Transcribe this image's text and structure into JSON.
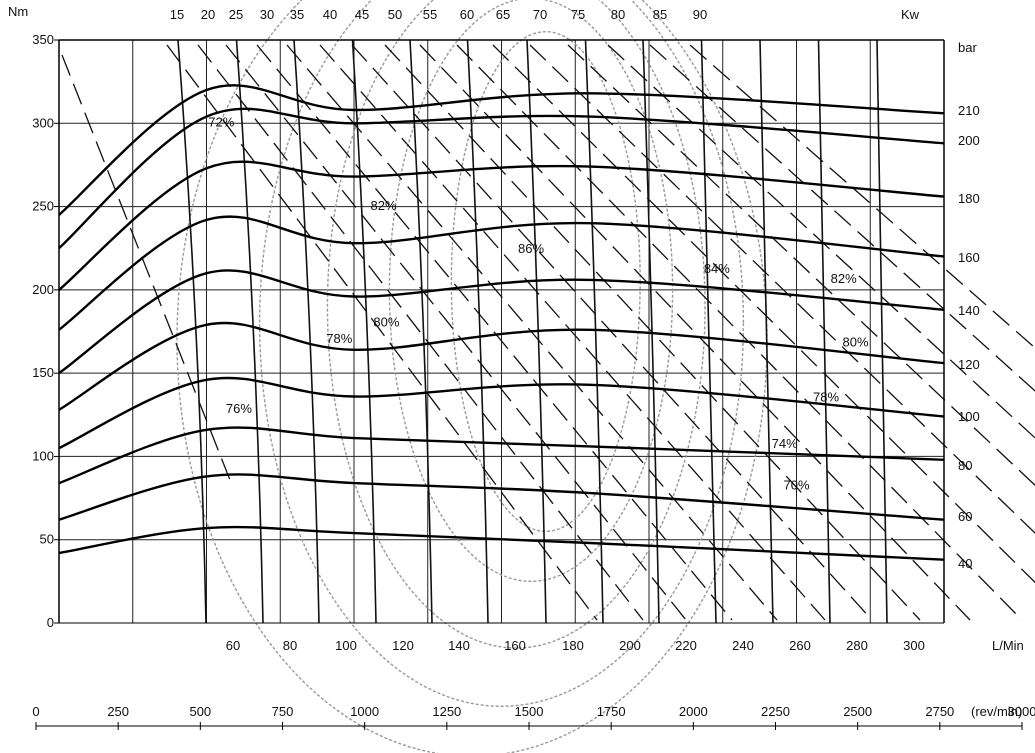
{
  "chart_data": {
    "type": "line",
    "title": "",
    "axes": {
      "left": {
        "label": "Nm",
        "ticks": [
          0,
          50,
          100,
          150,
          200,
          250,
          300,
          350
        ],
        "range": [
          0,
          350
        ]
      },
      "top": {
        "label": "Kw",
        "ticks": [
          15,
          20,
          25,
          30,
          35,
          40,
          45,
          50,
          55,
          60,
          65,
          70,
          75,
          80,
          85,
          90
        ]
      },
      "right": {
        "label": "bar",
        "ticks": [
          210,
          200,
          180,
          160,
          140,
          120,
          100,
          80,
          60,
          40
        ]
      },
      "bottom": {
        "label": "L/Min",
        "ticks": [
          60,
          80,
          100,
          120,
          140,
          160,
          180,
          200,
          220,
          240,
          260,
          280,
          300
        ]
      },
      "speed": {
        "label": "(rev/min)",
        "ticks": [
          0,
          250,
          500,
          750,
          1000,
          1250,
          1500,
          1750,
          2000,
          2250,
          2500,
          2750,
          3000
        ],
        "range": [
          0,
          3000
        ]
      }
    },
    "grid": true,
    "series": [
      {
        "name": "210",
        "values": [
          [
            0,
            245
          ],
          [
            500,
            320
          ],
          [
            1000,
            308
          ],
          [
            1800,
            318
          ],
          [
            3000,
            306
          ]
        ]
      },
      {
        "name": "200",
        "values": [
          [
            0,
            225
          ],
          [
            500,
            304
          ],
          [
            1000,
            300
          ],
          [
            1800,
            304
          ],
          [
            3000,
            288
          ]
        ]
      },
      {
        "name": "180",
        "values": [
          [
            0,
            200
          ],
          [
            500,
            273
          ],
          [
            1000,
            268
          ],
          [
            1800,
            274
          ],
          [
            3000,
            256
          ]
        ]
      },
      {
        "name": "160",
        "values": [
          [
            0,
            176
          ],
          [
            500,
            242
          ],
          [
            1000,
            228
          ],
          [
            1800,
            240
          ],
          [
            3000,
            220
          ]
        ]
      },
      {
        "name": "140",
        "values": [
          [
            0,
            150
          ],
          [
            500,
            210
          ],
          [
            1000,
            196
          ],
          [
            1800,
            206
          ],
          [
            3000,
            188
          ]
        ]
      },
      {
        "name": "120",
        "values": [
          [
            0,
            128
          ],
          [
            500,
            179
          ],
          [
            1000,
            164
          ],
          [
            1800,
            176
          ],
          [
            3000,
            156
          ]
        ]
      },
      {
        "name": "100",
        "values": [
          [
            0,
            105
          ],
          [
            500,
            146
          ],
          [
            1000,
            136
          ],
          [
            1800,
            143
          ],
          [
            3000,
            124
          ]
        ]
      },
      {
        "name": "80",
        "values": [
          [
            0,
            84
          ],
          [
            500,
            116
          ],
          [
            1000,
            111
          ],
          [
            1800,
            106
          ],
          [
            3000,
            98
          ]
        ]
      },
      {
        "name": "60",
        "values": [
          [
            0,
            62
          ],
          [
            500,
            88
          ],
          [
            1000,
            84
          ],
          [
            1800,
            78
          ],
          [
            3000,
            62
          ]
        ]
      },
      {
        "name": "40",
        "values": [
          [
            0,
            42
          ],
          [
            500,
            57
          ],
          [
            1000,
            54
          ],
          [
            1800,
            48
          ],
          [
            3000,
            38
          ]
        ]
      }
    ],
    "annotations": [
      {
        "text": "72%",
        "speed": 550,
        "torque": 298
      },
      {
        "text": "82%",
        "speed": 1100,
        "torque": 248
      },
      {
        "text": "86%",
        "speed": 1600,
        "torque": 222
      },
      {
        "text": "84%",
        "speed": 2230,
        "torque": 210
      },
      {
        "text": "82%",
        "speed": 2660,
        "torque": 204
      },
      {
        "text": "78%",
        "speed": 950,
        "torque": 168
      },
      {
        "text": "80%",
        "speed": 1110,
        "torque": 178
      },
      {
        "text": "80%",
        "speed": 2700,
        "torque": 166
      },
      {
        "text": "76%",
        "speed": 610,
        "torque": 126
      },
      {
        "text": "78%",
        "speed": 2600,
        "torque": 133
      },
      {
        "text": "74%",
        "speed": 2460,
        "torque": 105
      },
      {
        "text": "70%",
        "speed": 2500,
        "torque": 80
      }
    ]
  }
}
